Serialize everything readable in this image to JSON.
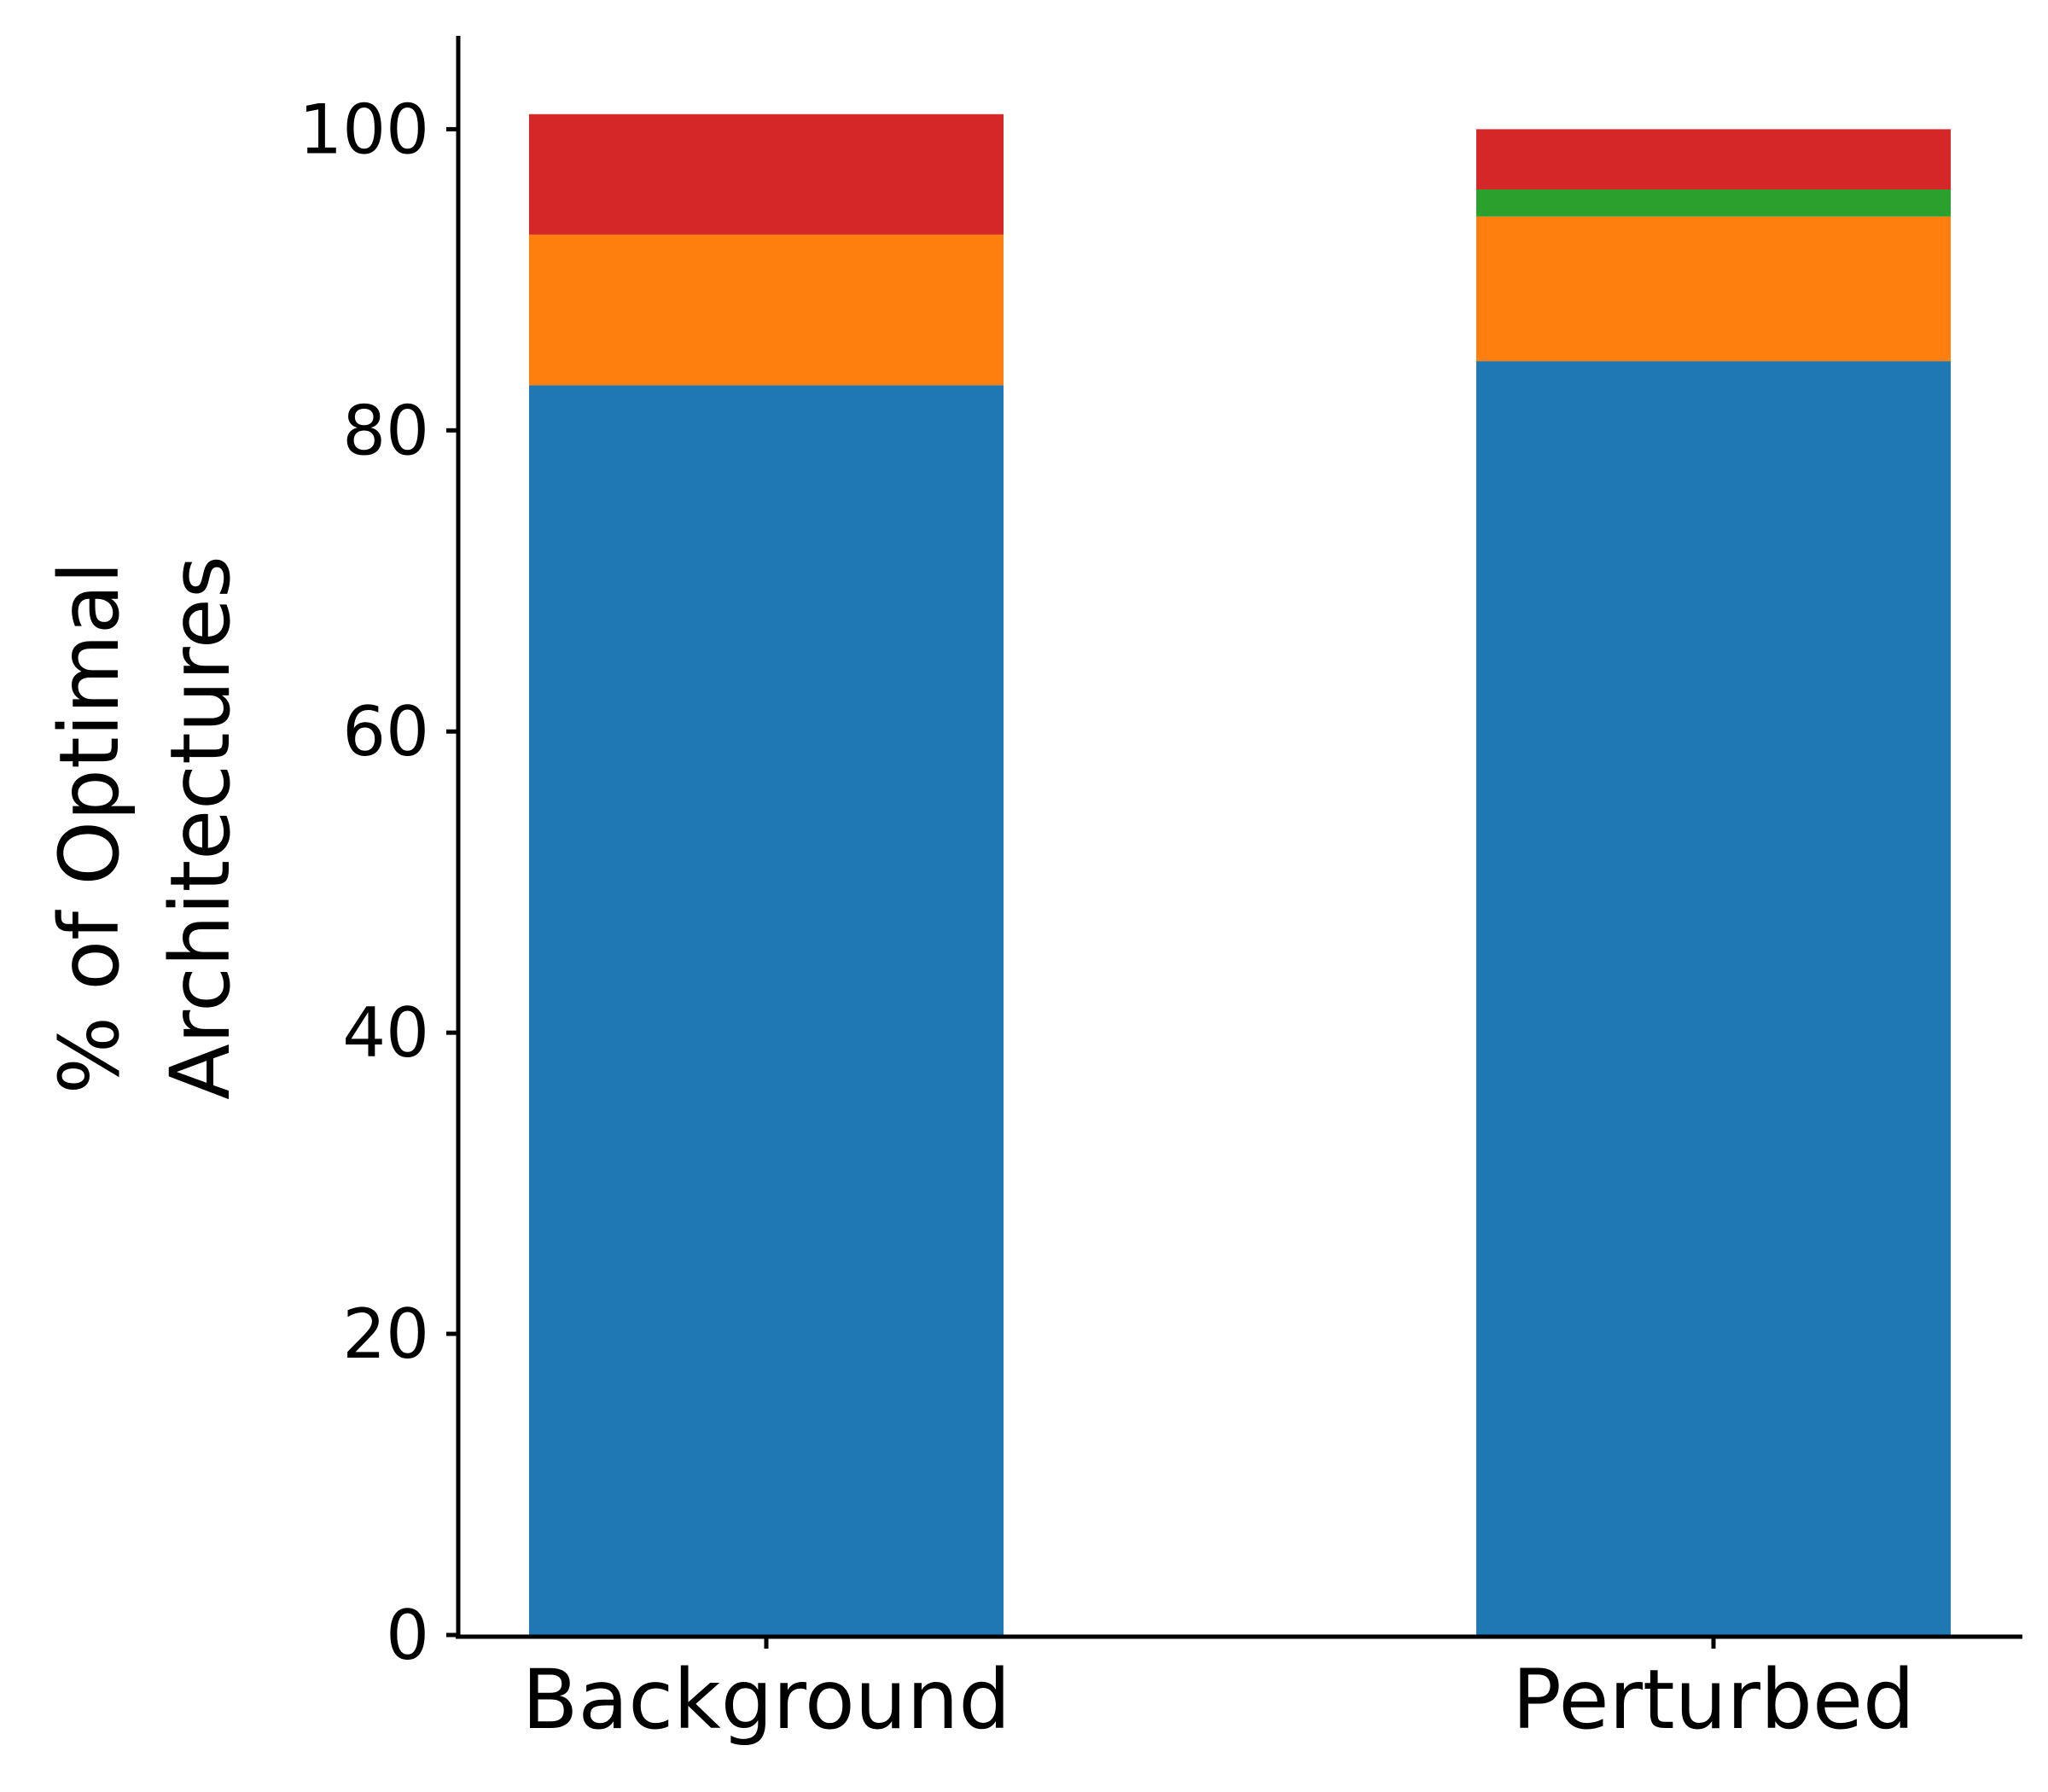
{
  "chart_data": {
    "type": "bar",
    "stacked": true,
    "categories": [
      "Background",
      "Perturbed"
    ],
    "series": [
      {
        "color": "#1f77b4",
        "values": [
          83.0,
          84.6
        ]
      },
      {
        "color": "#ff7f0e",
        "values": [
          10.0,
          9.6
        ]
      },
      {
        "color": "#2ca02c",
        "values": [
          0.0,
          1.8
        ]
      },
      {
        "color": "#d62728",
        "values": [
          8.0,
          4.0
        ]
      }
    ],
    "title": "",
    "xlabel": "",
    "ylabel_lines": [
      "% of Optimal",
      "Architectures"
    ],
    "ylim": [
      0,
      106.2
    ],
    "yticks": [
      0,
      20,
      40,
      60,
      80,
      100
    ],
    "grid": false,
    "legend": "none"
  }
}
